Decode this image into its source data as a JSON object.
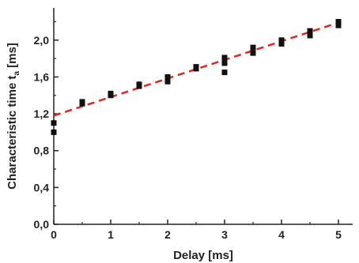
{
  "chart_data": {
    "type": "scatter",
    "xlabel": "Delay [ms]",
    "ylabel": {
      "main": "Characteristic time t",
      "subscript": "a",
      "suffix": " [ms]"
    },
    "xlim": [
      0,
      5.25
    ],
    "ylim": [
      0,
      2.35
    ],
    "xticks": [
      0,
      1,
      2,
      3,
      4,
      5
    ],
    "xtick_labels": [
      "0",
      "1",
      "2",
      "3",
      "4",
      "5"
    ],
    "yticks": [
      0,
      0.4,
      0.8,
      1.2,
      1.6,
      2.0
    ],
    "ytick_labels": [
      "0,0",
      "0,4",
      "0,8",
      "1,2",
      "1,6",
      "2,0"
    ],
    "grid": false,
    "points": [
      {
        "x": 0,
        "y": 1.0
      },
      {
        "x": 0,
        "y": 1.1
      },
      {
        "x": 0.5,
        "y": 1.31
      },
      {
        "x": 0.5,
        "y": 1.33
      },
      {
        "x": 1.0,
        "y": 1.4
      },
      {
        "x": 1.0,
        "y": 1.42
      },
      {
        "x": 1.5,
        "y": 1.5
      },
      {
        "x": 1.5,
        "y": 1.52
      },
      {
        "x": 2.0,
        "y": 1.55
      },
      {
        "x": 2.0,
        "y": 1.6
      },
      {
        "x": 2.5,
        "y": 1.69
      },
      {
        "x": 2.5,
        "y": 1.71
      },
      {
        "x": 3.0,
        "y": 1.65
      },
      {
        "x": 3.0,
        "y": 1.75
      },
      {
        "x": 3.0,
        "y": 1.81
      },
      {
        "x": 3.5,
        "y": 1.86
      },
      {
        "x": 3.5,
        "y": 1.92
      },
      {
        "x": 4.0,
        "y": 1.96
      },
      {
        "x": 4.0,
        "y": 2.0
      },
      {
        "x": 4.5,
        "y": 2.05
      },
      {
        "x": 4.5,
        "y": 2.1
      },
      {
        "x": 5.0,
        "y": 2.16
      },
      {
        "x": 5.0,
        "y": 2.2
      }
    ],
    "fit_line": {
      "x": [
        0,
        5
      ],
      "y": [
        1.18,
        2.19
      ],
      "color": "#e8231c",
      "style": "dashed"
    },
    "marker_color": "#111111"
  }
}
